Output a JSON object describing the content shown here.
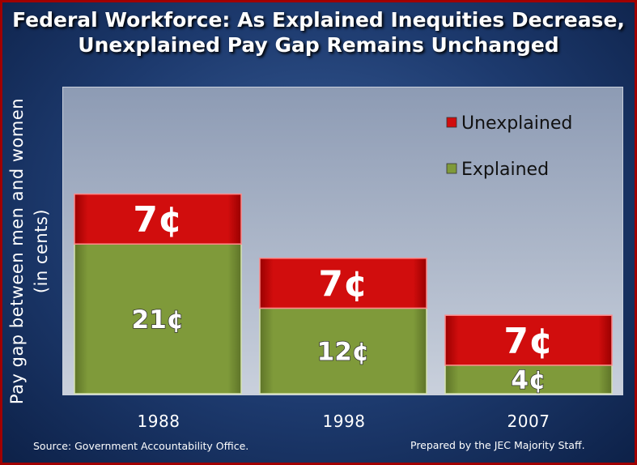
{
  "chart_data": {
    "type": "bar",
    "stacked": true,
    "title_line1": "Federal Workforce: As Explained Inequities Decrease,",
    "title_line2": "Unexplained Pay Gap Remains Unchanged",
    "ylabel_line1": "Pay gap between men and women",
    "ylabel_line2": "(in cents)",
    "xlabel": "",
    "categories": [
      "1988",
      "1998",
      "2007"
    ],
    "series": [
      {
        "name": "Explained",
        "values": [
          21,
          12,
          4
        ],
        "labels": [
          "21¢",
          "12¢",
          "4¢"
        ],
        "color": "#7f9a3a"
      },
      {
        "name": "Unexplained",
        "values": [
          7,
          7,
          7
        ],
        "labels": [
          "7¢",
          "7¢",
          "7¢"
        ],
        "color": "#d10d0d"
      }
    ],
    "legend": [
      "Unexplained",
      "Explained"
    ],
    "legend_position": "top-right",
    "ylim": [
      0,
      30
    ]
  },
  "footer": {
    "source": "Source: Government Accountability Office.",
    "prepared": "Prepared by the JEC Majority Staff."
  }
}
